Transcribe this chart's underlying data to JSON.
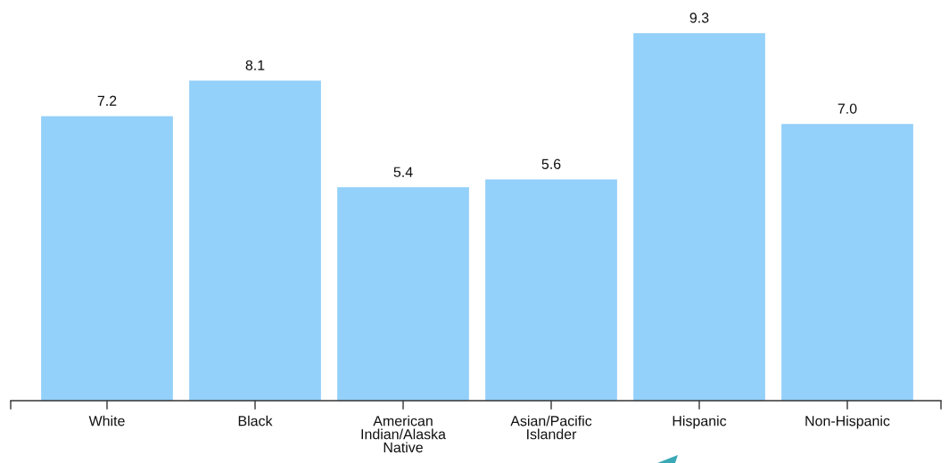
{
  "chart_data": {
    "type": "bar",
    "categories": [
      "White",
      "Black",
      "American\nIndian/Alaska\nNative",
      "Asian/Pacific\nIslander",
      "Hispanic",
      "Non-Hispanic"
    ],
    "values": [
      7.2,
      8.1,
      5.4,
      5.6,
      9.3,
      7.0
    ],
    "value_labels": [
      "7.2",
      "8.1",
      "5.4",
      "5.6",
      "9.3",
      "7.0"
    ],
    "color": "#93d0fa",
    "grid": false,
    "legend": false,
    "tick_labels": "x"
  }
}
